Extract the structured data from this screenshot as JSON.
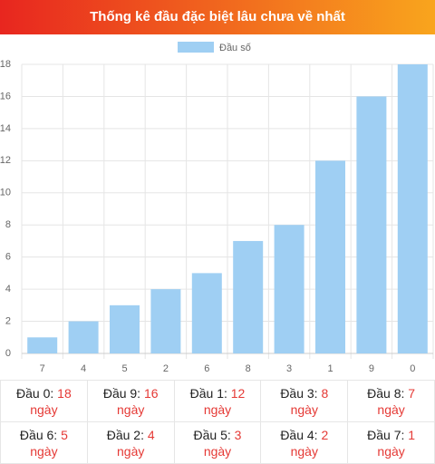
{
  "header": {
    "title": "Thống kê đầu đặc biệt lâu chưa về nhất"
  },
  "chart_data": {
    "type": "bar",
    "series": [
      {
        "name": "Đầu số",
        "color": "#9fcff3",
        "values": [
          1,
          2,
          3,
          4,
          5,
          7,
          8,
          12,
          16,
          18
        ]
      }
    ],
    "categories": [
      "7",
      "4",
      "5",
      "2",
      "6",
      "8",
      "3",
      "1",
      "9",
      "0"
    ],
    "ylim": [
      0,
      18
    ],
    "yticks": [
      0,
      2,
      4,
      6,
      8,
      10,
      12,
      14,
      16,
      18
    ],
    "grid": true,
    "legend": "top"
  },
  "table": {
    "unit": "ngày",
    "rows": [
      [
        {
          "label": "Đầu 0:",
          "days": 18
        },
        {
          "label": "Đầu 9:",
          "days": 16
        },
        {
          "label": "Đầu 1:",
          "days": 12
        },
        {
          "label": "Đầu 3:",
          "days": 8
        },
        {
          "label": "Đầu 8:",
          "days": 7
        }
      ],
      [
        {
          "label": "Đầu 6:",
          "days": 5
        },
        {
          "label": "Đầu 2:",
          "days": 4
        },
        {
          "label": "Đầu 5:",
          "days": 3
        },
        {
          "label": "Đầu 4:",
          "days": 2
        },
        {
          "label": "Đầu 7:",
          "days": 1
        }
      ]
    ]
  }
}
